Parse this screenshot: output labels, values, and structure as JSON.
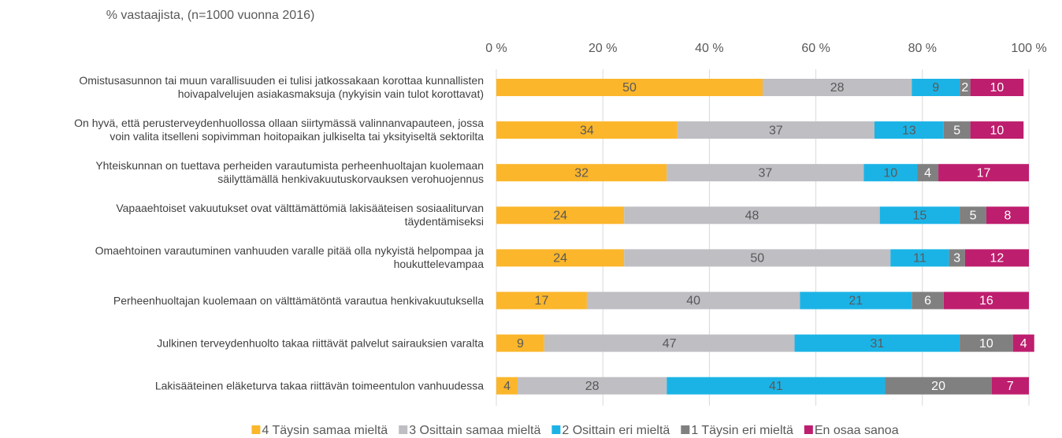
{
  "chart_data": {
    "type": "stacked_barh",
    "axis_title": "% vastaajista, (n=1000 vuonna 2016)",
    "categories": [
      "Omistusasunnon tai muun varallisuuden ei tulisi jatkossakaan korottaa kunnallisten\nhoivapalvelujen asiakasmaksuja (nykyisin vain tulot korottavat)",
      "On hyvä, että perusterveydenhuollossa ollaan siirtymässä valinnanvapauteen, jossa\nvoin valita itselleni sopivimman hoitopaikan julkiselta tai yksityiseltä sektorilta",
      "Yhteiskunnan on tuettava perheiden varautumista perheenhuoltajan kuolemaan\nsäilyttämällä henkivakuutuskorvauksen verohuojennus",
      "Vapaaehtoiset vakuutukset ovat välttämättömiä lakisääteisen sosiaaliturvan\ntäydentämiseksi",
      "Omaehtoinen varautuminen vanhuuden varalle pitää olla nykyistä helpompaa ja\nhoukuttelevampaa",
      "Perheenhuoltajan kuolemaan on välttämätöntä varautua henkivakuutuksella",
      "Julkinen terveydenhuolto takaa riittävät palvelut sairauksien varalta",
      "Lakisääteinen eläketurva takaa riittävän toimeentulon vanhuudessa"
    ],
    "series": [
      {
        "name": "4 Täysin samaa mieltä",
        "color": "#fbb62b",
        "values": [
          50,
          34,
          32,
          24,
          24,
          17,
          9,
          4
        ]
      },
      {
        "name": "3 Osittain samaa mieltä",
        "color": "#bebec3",
        "values": [
          28,
          37,
          37,
          48,
          50,
          40,
          47,
          28
        ]
      },
      {
        "name": "2 Osittain eri mieltä",
        "color": "#1bb3e6",
        "values": [
          9,
          13,
          10,
          15,
          11,
          21,
          31,
          41
        ]
      },
      {
        "name": "1 Täysin eri mieltä",
        "color": "#808080",
        "values": [
          2,
          5,
          4,
          5,
          3,
          6,
          10,
          20
        ]
      },
      {
        "name": "En osaa sanoa",
        "color": "#be1e6e",
        "values": [
          10,
          10,
          17,
          8,
          12,
          16,
          4,
          7
        ]
      }
    ],
    "xlim": [
      0,
      100
    ],
    "xticks": [
      {
        "value": 0,
        "label": "0 %"
      },
      {
        "value": 20,
        "label": "20 %"
      },
      {
        "value": 40,
        "label": "40 %"
      },
      {
        "value": 60,
        "label": "60 %"
      },
      {
        "value": 80,
        "label": "80 %"
      },
      {
        "value": 100,
        "label": "100 %"
      }
    ],
    "grid": true,
    "legend": "bottom"
  }
}
